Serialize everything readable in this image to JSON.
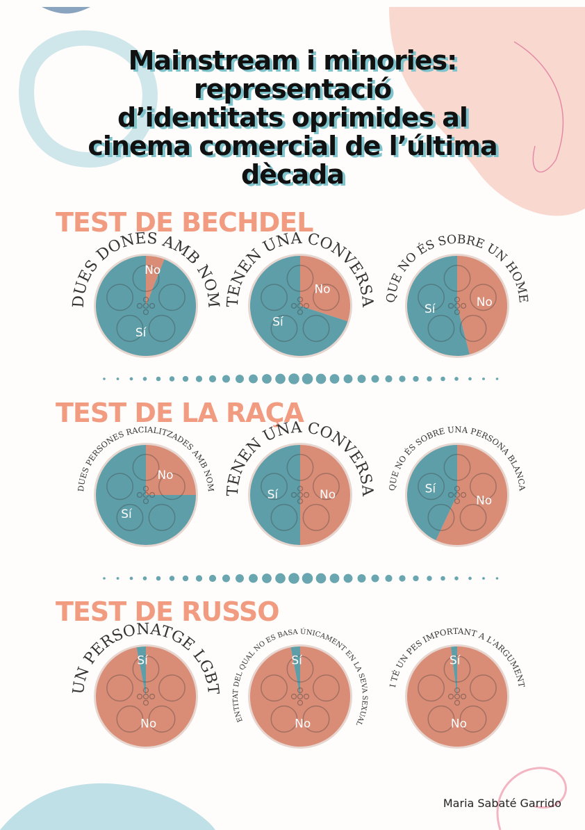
{
  "title": [
    "Mainstream i minories:",
    "representació",
    "d’identitats oprimides al",
    "cinema comercial de l’última",
    "dècada"
  ],
  "sections": [
    "TEST DE BECHDEL",
    "TEST DE LA RAÇA",
    "TEST DE RUSSO"
  ],
  "author": "Maria Sabaté Garrido",
  "chart_data": [
    {
      "type": "pie",
      "title": "DUES DONES AMB NOM",
      "categories": [
        "Sí",
        "No"
      ],
      "values": [
        94,
        6
      ],
      "colors": [
        "#5e9ea8",
        "#d98c76"
      ]
    },
    {
      "type": "pie",
      "title": "TENEN UNA CONVERSA",
      "categories": [
        "Sí",
        "No"
      ],
      "values": [
        70,
        30
      ],
      "colors": [
        "#5e9ea8",
        "#d98c76"
      ]
    },
    {
      "type": "pie",
      "title": "QUE NO ÉS SOBRE UN HOME",
      "categories": [
        "Sí",
        "No"
      ],
      "values": [
        54,
        46
      ],
      "colors": [
        "#5e9ea8",
        "#d98c76"
      ]
    },
    {
      "type": "pie",
      "title": "DUES PERSONES RACIALITZADES AMB NOM",
      "categories": [
        "Sí",
        "No"
      ],
      "values": [
        75,
        25
      ],
      "colors": [
        "#5e9ea8",
        "#d98c76"
      ]
    },
    {
      "type": "pie",
      "title": "TENEN UNA CONVERSA",
      "categories": [
        "Sí",
        "No"
      ],
      "values": [
        50,
        50
      ],
      "colors": [
        "#5e9ea8",
        "#d98c76"
      ]
    },
    {
      "type": "pie",
      "title": "QUE NO ÉS SOBRE UNA PERSONA BLANCA",
      "categories": [
        "Sí",
        "No"
      ],
      "values": [
        43,
        57
      ],
      "colors": [
        "#5e9ea8",
        "#d98c76"
      ]
    },
    {
      "type": "pie",
      "title": "UN PERSONATGE LGBT",
      "categories": [
        "Sí",
        "No"
      ],
      "values": [
        3,
        97
      ],
      "colors": [
        "#5e9ea8",
        "#d98c76"
      ]
    },
    {
      "type": "pie",
      "title": "LA IDENTITAT DEL QUAL NO ES BASA ÚNICAMENT EN LA SEVA SEXUALITAT",
      "categories": [
        "Sí",
        "No"
      ],
      "values": [
        3,
        97
      ],
      "colors": [
        "#5e9ea8",
        "#d98c76"
      ]
    },
    {
      "type": "pie",
      "title": "I TÉ UN PES IMPORTANT A L'ARGUMENT",
      "categories": [
        "Sí",
        "No"
      ],
      "values": [
        2,
        98
      ],
      "colors": [
        "#5e9ea8",
        "#d98c76"
      ]
    }
  ]
}
